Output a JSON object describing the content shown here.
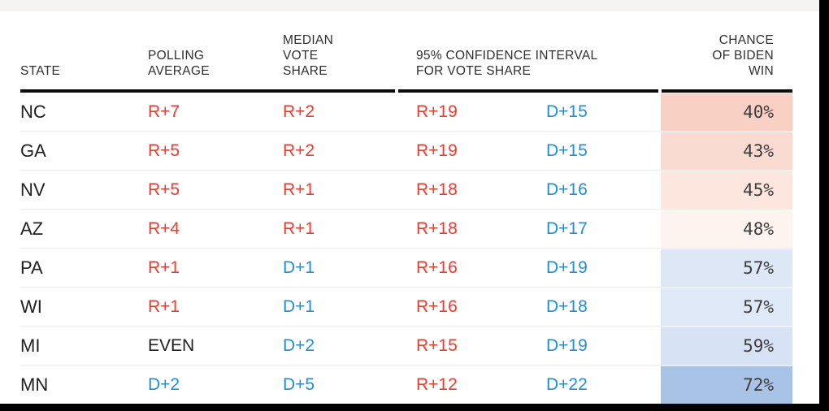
{
  "colors": {
    "rep": "#f0392b",
    "dem": "#1e8fd5",
    "even": "#1f1f1f"
  },
  "header": {
    "state": "STATE",
    "polling_average": "POLLING AVERAGE",
    "median_vote_share": "MEDIAN VOTE SHARE",
    "confidence_interval": "95% CONFIDENCE INTERVAL FOR VOTE SHARE",
    "chance_of_biden_win": "CHANCE OF BIDEN WIN"
  },
  "chart_data": {
    "type": "table",
    "columns": [
      "STATE",
      "POLLING AVERAGE",
      "MEDIAN VOTE SHARE",
      "95% CONFIDENCE INTERVAL FOR VOTE SHARE (LOW)",
      "95% CONFIDENCE INTERVAL FOR VOTE SHARE (HIGH)",
      "CHANCE OF BIDEN WIN"
    ],
    "rows": [
      {
        "state": "NC",
        "polling": "R+7",
        "median": "R+2",
        "ci_low": "R+19",
        "ci_high": "D+15",
        "chance": "40%",
        "chance_bg": "#f8d0c4"
      },
      {
        "state": "GA",
        "polling": "R+5",
        "median": "R+2",
        "ci_low": "R+19",
        "ci_high": "D+15",
        "chance": "43%",
        "chance_bg": "#fadbd1"
      },
      {
        "state": "NV",
        "polling": "R+5",
        "median": "R+1",
        "ci_low": "R+18",
        "ci_high": "D+16",
        "chance": "45%",
        "chance_bg": "#fce6de"
      },
      {
        "state": "AZ",
        "polling": "R+4",
        "median": "R+1",
        "ci_low": "R+18",
        "ci_high": "D+17",
        "chance": "48%",
        "chance_bg": "#fdf3ef"
      },
      {
        "state": "PA",
        "polling": "R+1",
        "median": "D+1",
        "ci_low": "R+16",
        "ci_high": "D+19",
        "chance": "57%",
        "chance_bg": "#dde7f6"
      },
      {
        "state": "WI",
        "polling": "R+1",
        "median": "D+1",
        "ci_low": "R+16",
        "ci_high": "D+18",
        "chance": "57%",
        "chance_bg": "#dfe8f7"
      },
      {
        "state": "MI",
        "polling": "EVEN",
        "median": "D+2",
        "ci_low": "R+15",
        "ci_high": "D+19",
        "chance": "59%",
        "chance_bg": "#d7e2f4"
      },
      {
        "state": "MN",
        "polling": "D+2",
        "median": "D+5",
        "ci_low": "R+12",
        "ci_high": "D+22",
        "chance": "72%",
        "chance_bg": "#a9c3e7"
      }
    ]
  }
}
